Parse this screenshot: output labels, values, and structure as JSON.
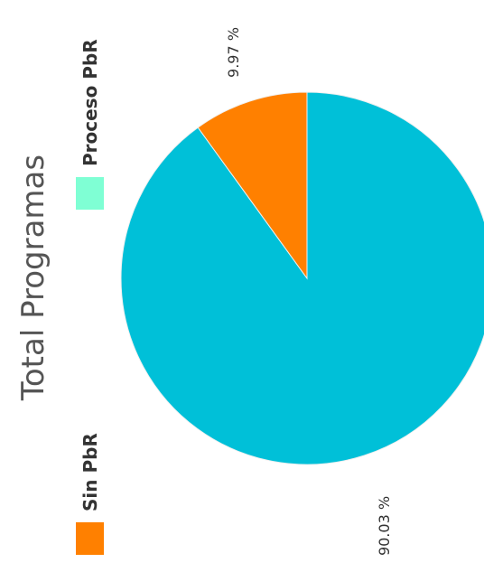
{
  "chart_data": {
    "type": "pie",
    "title": "Total Programas",
    "slices": [
      {
        "label": "Proceso PbR",
        "value": 90.03,
        "display": "90.03 %",
        "color": "#00c0d8",
        "legend_color": "#7fffd4"
      },
      {
        "label": "Sin PbR",
        "value": 9.97,
        "display": "9.97 %",
        "color": "#ff8000",
        "legend_color": "#ff8000"
      }
    ]
  }
}
